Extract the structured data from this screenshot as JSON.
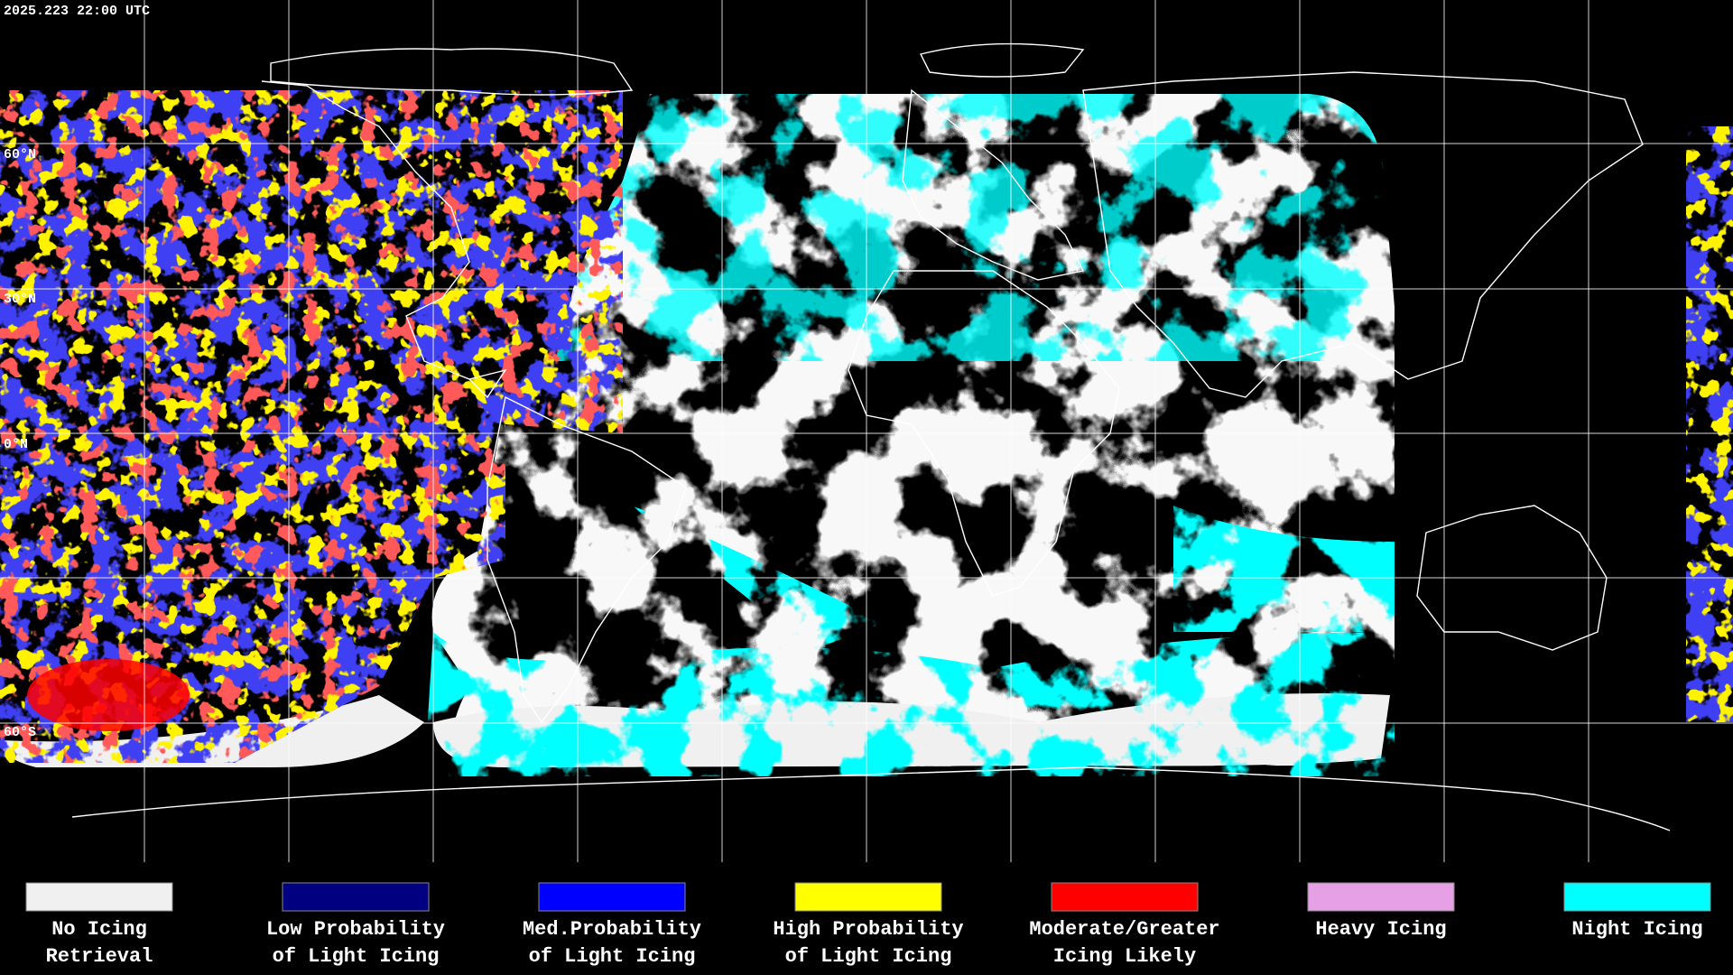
{
  "header": {
    "timestamp": "2025.223 22:00 UTC"
  },
  "map": {
    "latitude_labels": [
      "60°N",
      "30°N",
      "0°N",
      "60°S"
    ]
  },
  "legend": [
    {
      "label": [
        "No Icing",
        "Retrieval"
      ],
      "color": "#f0f0f0"
    },
    {
      "label": [
        "Low Probability",
        "of Light Icing"
      ],
      "color": "#000080"
    },
    {
      "label": [
        "Med.Probability",
        "of Light Icing"
      ],
      "color": "#0000ff"
    },
    {
      "label": [
        "High Probability",
        "of Light Icing"
      ],
      "color": "#ffff00"
    },
    {
      "label": [
        "Moderate/Greater",
        "Icing Likely"
      ],
      "color": "#ff0000"
    },
    {
      "label": [
        "Heavy Icing"
      ],
      "color": "#e6a0e6"
    },
    {
      "label": [
        "Night Icing"
      ],
      "color": "#00ffff"
    }
  ]
}
